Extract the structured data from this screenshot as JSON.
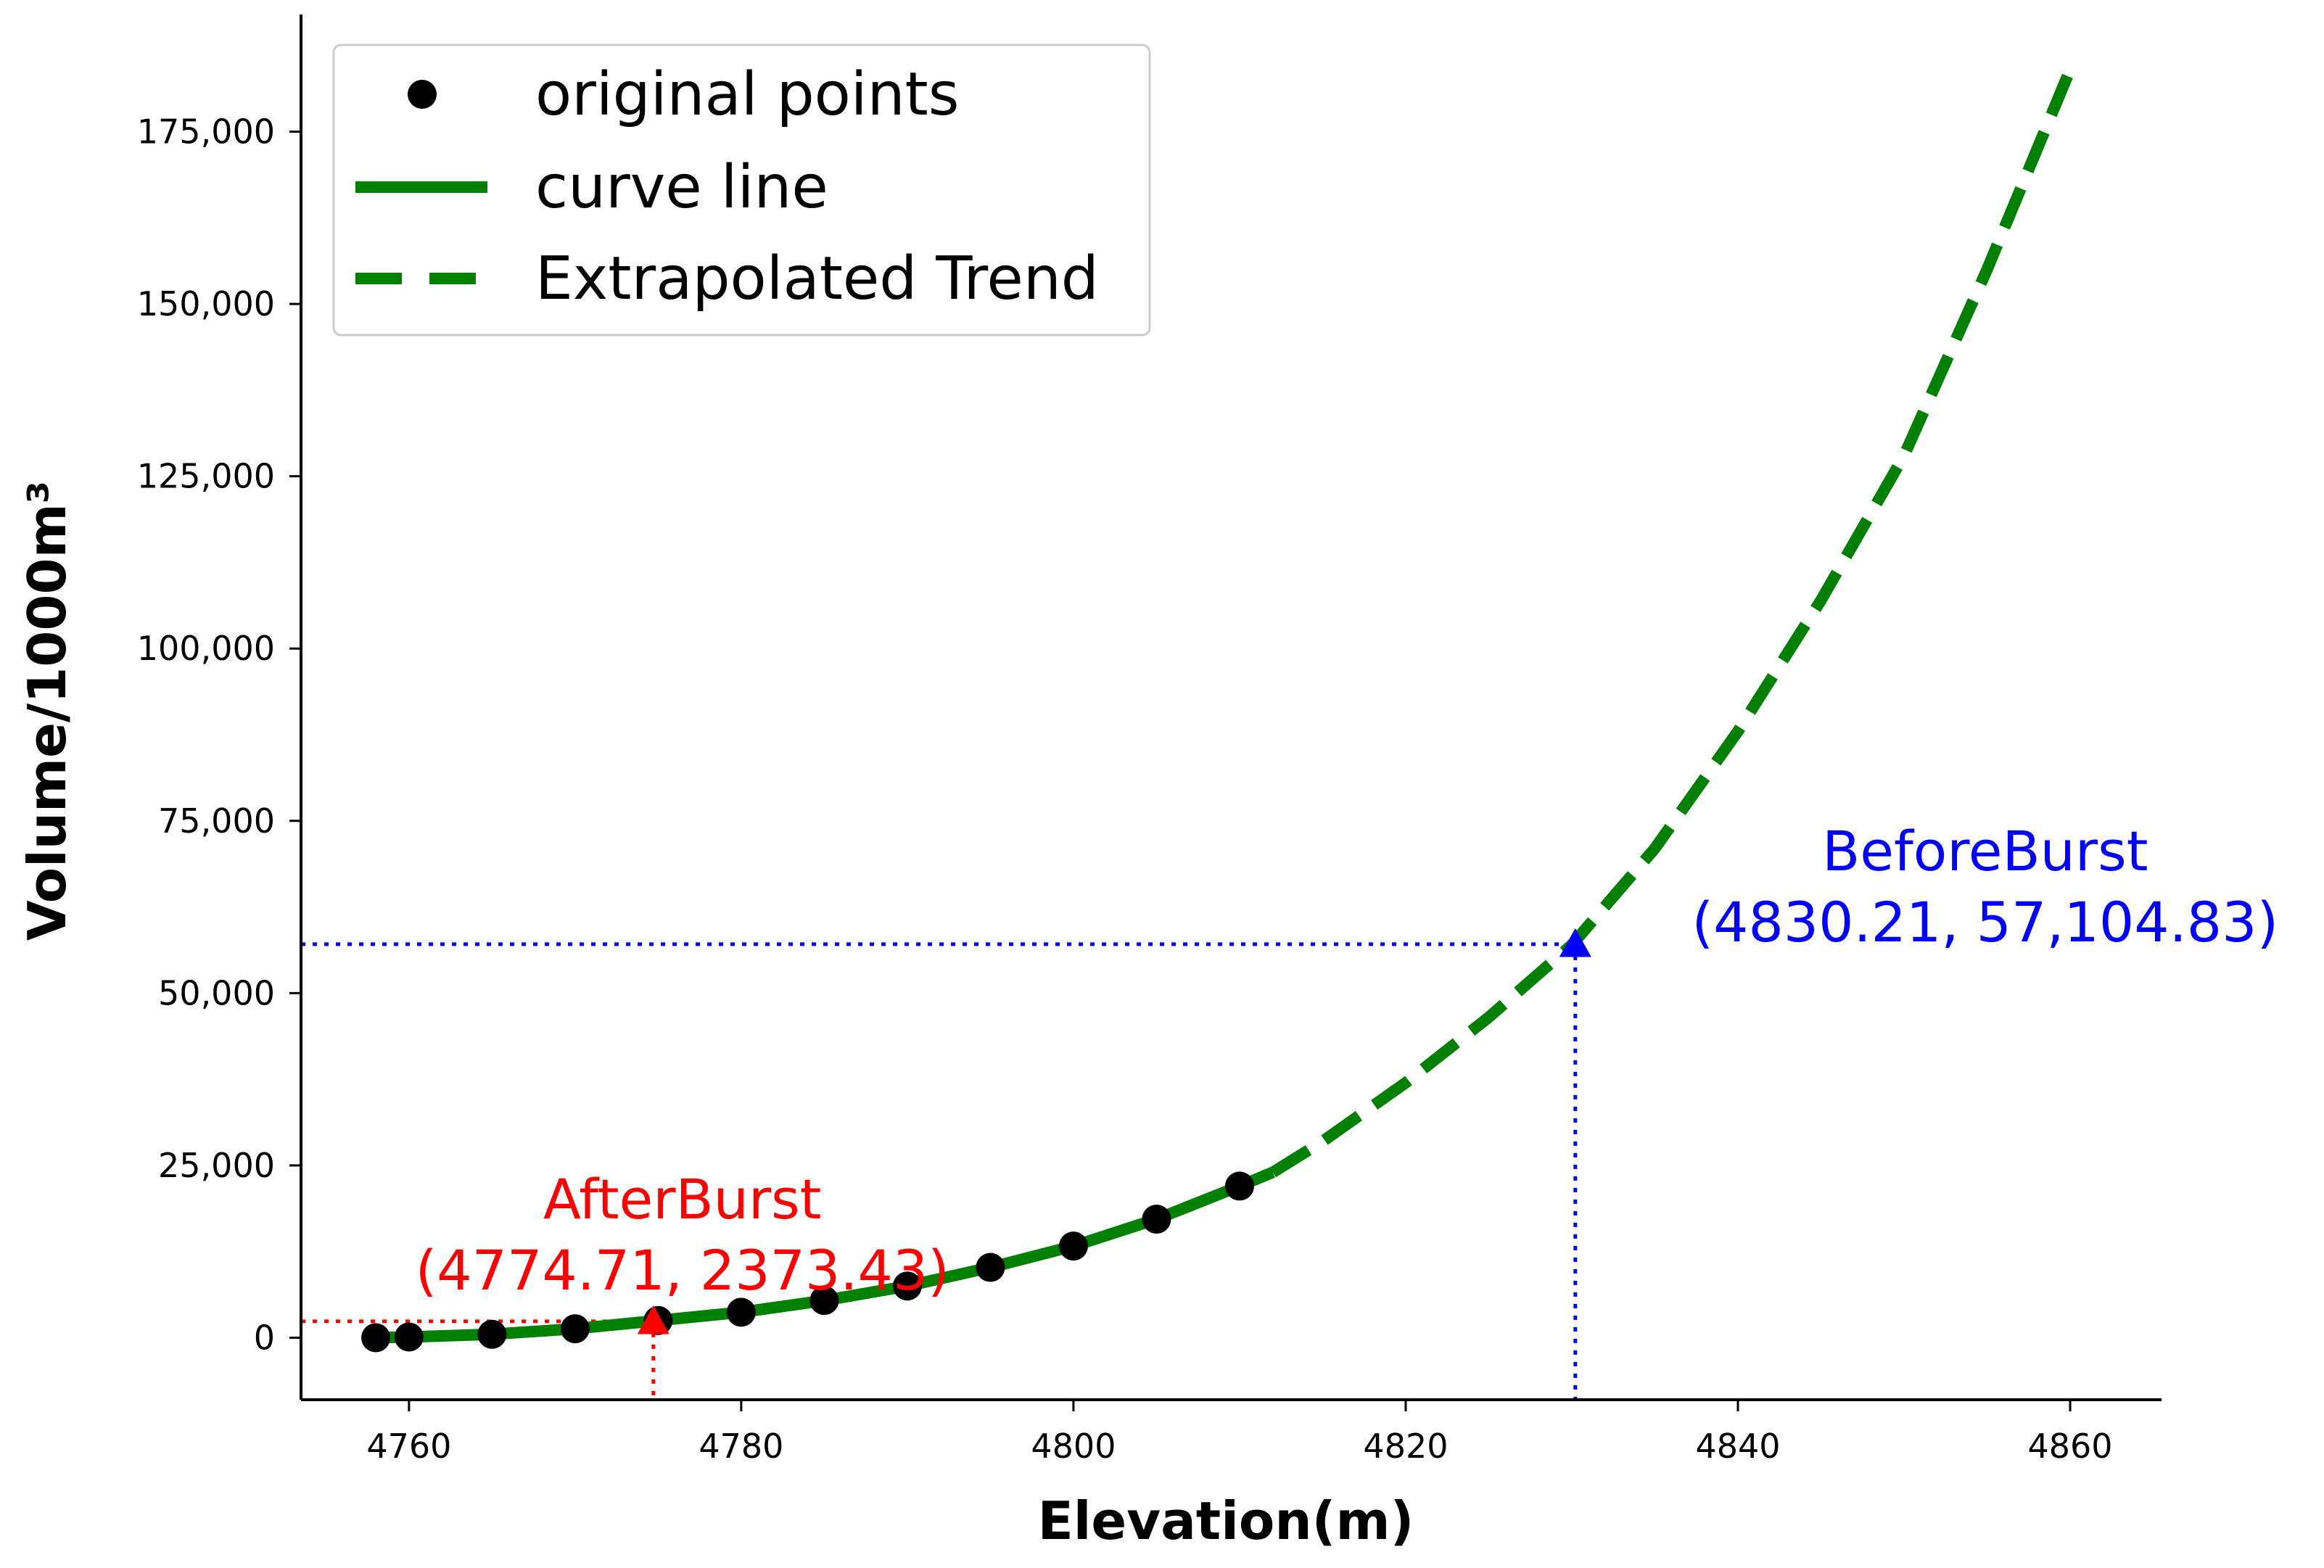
{
  "chart_data": {
    "type": "line",
    "title": "",
    "xlabel": "Elevation(m)",
    "ylabel": "Volume/1000m³",
    "xlim": [
      4753.5,
      4865.5
    ],
    "ylim": [
      -9000,
      192000
    ],
    "x_ticks": [
      4760,
      4780,
      4800,
      4820,
      4840,
      4860
    ],
    "x_tick_labels": [
      "4760",
      "4780",
      "4800",
      "4820",
      "4840",
      "4860"
    ],
    "y_ticks": [
      0,
      25000,
      50000,
      75000,
      100000,
      125000,
      150000,
      175000
    ],
    "y_tick_labels": [
      "0",
      "25,000",
      "50,000",
      "75,000",
      "100,000",
      "125,000",
      "150,000",
      "175,000"
    ],
    "grid": false,
    "legend_position": "top-left",
    "legend": [
      {
        "label": "original points",
        "style": "marker",
        "color": "#000000"
      },
      {
        "label": "curve line",
        "style": "solid",
        "color": "#008000"
      },
      {
        "label": "Extrapolated Trend",
        "style": "dashed",
        "color": "#008000"
      }
    ],
    "series": [
      {
        "name": "original points",
        "kind": "scatter",
        "color": "#000000",
        "x": [
          4758,
          4760,
          4765,
          4770,
          4775,
          4780,
          4785,
          4790,
          4795,
          4800,
          4805,
          4810
        ],
        "y": [
          0,
          100,
          500,
          1300,
          2500,
          3700,
          5400,
          7500,
          10200,
          13300,
          17200,
          22000
        ]
      },
      {
        "name": "curve line",
        "kind": "line",
        "style": "solid",
        "color": "#008000",
        "x": [
          4758,
          4760,
          4765,
          4770,
          4775,
          4780,
          4785,
          4790,
          4795,
          4800,
          4805,
          4810,
          4812
        ],
        "y": [
          0,
          100,
          500,
          1300,
          2500,
          3700,
          5400,
          7500,
          10200,
          13300,
          17200,
          22000,
          24000
        ]
      },
      {
        "name": "Extrapolated Trend",
        "kind": "line",
        "style": "dashed",
        "color": "#008000",
        "x": [
          4812,
          4815,
          4820,
          4825,
          4830,
          4835,
          4840,
          4845,
          4850,
          4855,
          4860
        ],
        "y": [
          24000,
          28500,
          37000,
          46500,
          57000,
          71000,
          88000,
          107000,
          128000,
          155000,
          184000
        ]
      }
    ],
    "annotations": [
      {
        "name": "AfterBurst",
        "label": "AfterBurst",
        "coords_label": "(4774.71, 2373.43)",
        "x": 4774.71,
        "y": 2373.43,
        "color": "#ff0000",
        "marker": "triangle"
      },
      {
        "name": "BeforeBurst",
        "label": "BeforeBurst",
        "coords_label": "(4830.21, 57,104.83)",
        "x": 4830.21,
        "y": 57104.83,
        "color": "#0000ff",
        "marker": "triangle"
      }
    ]
  }
}
